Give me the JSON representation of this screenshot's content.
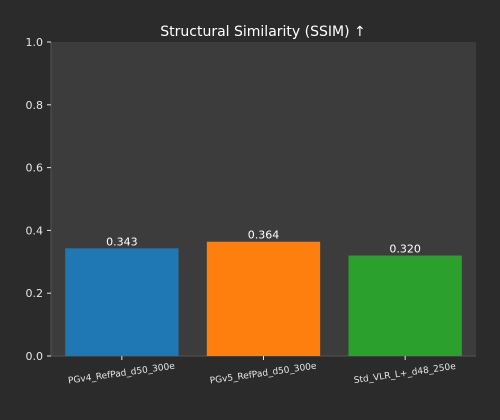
{
  "chart_data": {
    "type": "bar",
    "title": "Structural Similarity (SSIM) ↑",
    "xlabel": "",
    "ylabel": "",
    "categories": [
      "PGv4_RefPad_d50_300e",
      "PGv5_RefPad_d50_300e",
      "Std_VLR_L+_d48_250e"
    ],
    "values": [
      0.343,
      0.364,
      0.32
    ],
    "value_labels": [
      "0.343",
      "0.364",
      "0.320"
    ],
    "bar_colors": [
      "#1f77b4",
      "#ff7f0e",
      "#2ca02c"
    ],
    "ylim": [
      0.0,
      1.0
    ],
    "yticks": [
      0.0,
      0.2,
      0.4,
      0.6,
      0.8,
      1.0
    ],
    "ytick_labels": [
      "0.0",
      "0.2",
      "0.4",
      "0.6",
      "0.8",
      "1.0"
    ],
    "xtick_rotation_deg": 8,
    "grid": false,
    "legend": "none",
    "colors": {
      "figure_background": "#2b2b2b",
      "axes_background": "#3c3c3c",
      "text": "#ffffff",
      "tick_text": "#e6e6e6",
      "spine": "#555555"
    }
  }
}
